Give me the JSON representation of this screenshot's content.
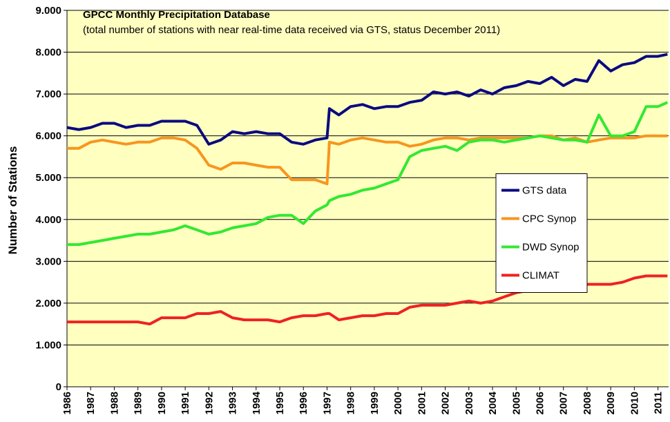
{
  "chart_data": {
    "type": "line",
    "title": "GPCC Monthly Precipitation Database",
    "subtitle": "(total number of stations with near real-time data received via GTS, status December 2011)",
    "y_label": "Number of Stations",
    "x": [
      1986,
      1986.5,
      1987,
      1987.5,
      1988,
      1988.5,
      1989,
      1989.5,
      1990,
      1990.5,
      1991,
      1991.5,
      1992,
      1992.5,
      1993,
      1993.5,
      1994,
      1994.5,
      1995,
      1995.5,
      1996,
      1996.5,
      1997,
      1997.1,
      1997.5,
      1998,
      1998.5,
      1999,
      1999.5,
      2000,
      2000.5,
      2001,
      2001.5,
      2002,
      2002.5,
      2003,
      2003.5,
      2004,
      2004.5,
      2005,
      2005.5,
      2006,
      2006.5,
      2007,
      2007.5,
      2008,
      2008.5,
      2009,
      2009.5,
      2010,
      2010.5,
      2011,
      2011.4
    ],
    "series": [
      {
        "name": "GTS data",
        "color": "#0a0a80",
        "values": [
          6200,
          6150,
          6200,
          6300,
          6300,
          6200,
          6250,
          6250,
          6350,
          6350,
          6350,
          6250,
          5800,
          5900,
          6100,
          6050,
          6100,
          6050,
          6050,
          5850,
          5800,
          5900,
          5950,
          6650,
          6500,
          6700,
          6750,
          6650,
          6700,
          6700,
          6800,
          6850,
          7050,
          7000,
          7050,
          6950,
          7100,
          7000,
          7150,
          7200,
          7300,
          7250,
          7400,
          7200,
          7350,
          7300,
          7800,
          7550,
          7700,
          7750,
          7900,
          7900,
          7950
        ]
      },
      {
        "name": "CPC Synop",
        "color": "#f7961e",
        "values": [
          5700,
          5700,
          5850,
          5900,
          5850,
          5800,
          5850,
          5850,
          5950,
          5950,
          5900,
          5700,
          5300,
          5200,
          5350,
          5350,
          5300,
          5250,
          5250,
          4950,
          4950,
          4950,
          4850,
          5850,
          5800,
          5900,
          5950,
          5900,
          5850,
          5850,
          5750,
          5800,
          5900,
          5950,
          5950,
          5900,
          5950,
          5950,
          5950,
          5950,
          5950,
          6000,
          6000,
          5900,
          5950,
          5850,
          5900,
          5950,
          5950,
          5950,
          6000,
          6000,
          6000
        ]
      },
      {
        "name": "DWD Synop",
        "color": "#33e833",
        "values": [
          3400,
          3400,
          3450,
          3500,
          3550,
          3600,
          3650,
          3650,
          3700,
          3750,
          3850,
          3750,
          3650,
          3700,
          3800,
          3850,
          3900,
          4050,
          4100,
          4100,
          3900,
          4200,
          4350,
          4450,
          4550,
          4600,
          4700,
          4750,
          4850,
          4950,
          5500,
          5650,
          5700,
          5750,
          5650,
          5850,
          5900,
          5900,
          5850,
          5900,
          5950,
          6000,
          5950,
          5900,
          5900,
          5850,
          6500,
          6000,
          6000,
          6100,
          6700,
          6700,
          6800
        ]
      },
      {
        "name": "CLIMAT",
        "color": "#ee2222",
        "values": [
          1550,
          1550,
          1550,
          1550,
          1550,
          1550,
          1550,
          1500,
          1650,
          1650,
          1650,
          1750,
          1750,
          1800,
          1650,
          1600,
          1600,
          1600,
          1550,
          1650,
          1700,
          1700,
          1750,
          1750,
          1600,
          1650,
          1700,
          1700,
          1750,
          1750,
          1900,
          1950,
          1950,
          1950,
          2000,
          2050,
          2000,
          2050,
          2150,
          2250,
          2300,
          2300,
          2350,
          2350,
          2400,
          2450,
          2450,
          2450,
          2500,
          2600,
          2650,
          2650,
          2650
        ]
      }
    ],
    "xlim": [
      1986,
      2011.45
    ],
    "xticks": [
      1986,
      1987,
      1988,
      1989,
      1990,
      1991,
      1992,
      1993,
      1994,
      1995,
      1996,
      1997,
      1998,
      1999,
      2000,
      2001,
      2002,
      2003,
      2004,
      2005,
      2006,
      2007,
      2008,
      2009,
      2010,
      2011
    ],
    "ylim": [
      0,
      9000
    ],
    "yticks": [
      0,
      {
        "value": 1000,
        "label": "1.000"
      },
      {
        "value": 2000,
        "label": "2.000"
      },
      {
        "value": 3000,
        "label": "3.000"
      },
      {
        "value": 4000,
        "label": "4.000"
      },
      {
        "value": 5000,
        "label": "5.000"
      },
      {
        "value": 6000,
        "label": "6.000"
      },
      {
        "value": 7000,
        "label": "7.000"
      },
      {
        "value": 8000,
        "label": "8.000"
      },
      {
        "value": 9000,
        "label": "9.000"
      }
    ],
    "grid": true,
    "plot_background": "#ffffc0",
    "legend": "center right"
  }
}
